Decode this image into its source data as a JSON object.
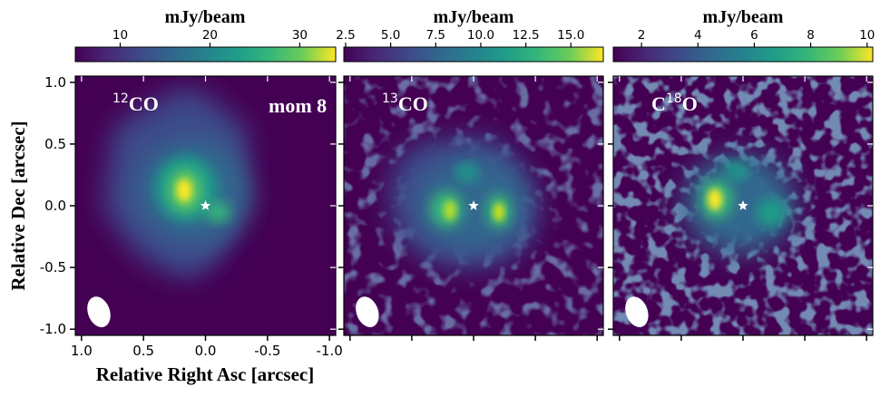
{
  "chart_data": [
    {
      "type": "heatmap",
      "species": "12CO",
      "label_main": "CO",
      "label_super": "12",
      "label_prefix": "",
      "annotation": "mom 8",
      "colorbar": {
        "title": "mJy/beam",
        "min": 5,
        "max": 34,
        "ticks": [
          10,
          20,
          30
        ],
        "tick_labels": [
          "10",
          "20",
          "30"
        ]
      },
      "xlim": [
        1.05,
        -1.05
      ],
      "ylim": [
        -1.05,
        1.05
      ],
      "xticks": [
        1.0,
        0.5,
        0.0,
        -0.5,
        -1.0
      ],
      "xtick_labels": [
        "1.0",
        "0.5",
        "0.0",
        "-0.5",
        "-1.0"
      ],
      "yticks": [
        1.0,
        0.5,
        0.0,
        -0.5,
        -1.0
      ],
      "ytick_labels": [
        "1.0",
        "0.5",
        "0.0",
        "-0.5",
        "-1.0"
      ],
      "star": [
        0.0,
        0.0
      ],
      "beam": {
        "x": 0.86,
        "y": -0.86,
        "major": 0.17,
        "minor": 0.11,
        "pa_deg": 20
      },
      "emission_peaks": [
        {
          "x": 0.15,
          "y": 0.12,
          "peak_mJy": 33
        },
        {
          "x": -0.1,
          "y": -0.05,
          "peak_mJy": 20
        }
      ]
    },
    {
      "type": "heatmap",
      "species": "13CO",
      "label_main": "CO",
      "label_super": "13",
      "label_prefix": "",
      "colorbar": {
        "title": "mJy/beam",
        "min": 2.4,
        "max": 16.8,
        "ticks": [
          2.5,
          5.0,
          7.5,
          10.0,
          12.5,
          15.0
        ],
        "tick_labels": [
          "2.5",
          "5.0",
          "7.5",
          "10.0",
          "12.5",
          "15.0"
        ]
      },
      "xlim": [
        1.05,
        -1.05
      ],
      "ylim": [
        -1.05,
        1.05
      ],
      "star": [
        0.0,
        0.0
      ],
      "beam": {
        "x": 0.86,
        "y": -0.86,
        "major": 0.17,
        "minor": 0.11,
        "pa_deg": 20
      },
      "emission_peaks": [
        {
          "x": 0.2,
          "y": -0.05,
          "peak_mJy": 15
        },
        {
          "x": -0.22,
          "y": -0.05,
          "peak_mJy": 16
        },
        {
          "x": 0.05,
          "y": 0.25,
          "peak_mJy": 12
        }
      ]
    },
    {
      "type": "heatmap",
      "species": "C18O",
      "label_main": "O",
      "label_super": "18",
      "label_prefix": "C",
      "colorbar": {
        "title": "mJy/beam",
        "min": 1.0,
        "max": 10.2,
        "ticks": [
          2,
          4,
          6,
          8,
          10
        ],
        "tick_labels": [
          "2",
          "4",
          "6",
          "8",
          "10"
        ]
      },
      "xlim": [
        1.05,
        -1.05
      ],
      "ylim": [
        -1.05,
        1.05
      ],
      "star": [
        0.0,
        0.0
      ],
      "beam": {
        "x": 0.86,
        "y": -0.86,
        "major": 0.17,
        "minor": 0.11,
        "pa_deg": 20
      },
      "emission_peaks": [
        {
          "x": 0.25,
          "y": 0.05,
          "peak_mJy": 10
        },
        {
          "x": -0.25,
          "y": -0.1,
          "peak_mJy": 7
        },
        {
          "x": 0.0,
          "y": 0.25,
          "peak_mJy": 6
        }
      ]
    }
  ],
  "axes": {
    "xlabel": "Relative Right Asc [arcsec]",
    "ylabel": "Relative Dec [arcsec]"
  },
  "colors": {
    "background": "#440154",
    "star": "#ffffff",
    "beam": "#ffffff"
  }
}
